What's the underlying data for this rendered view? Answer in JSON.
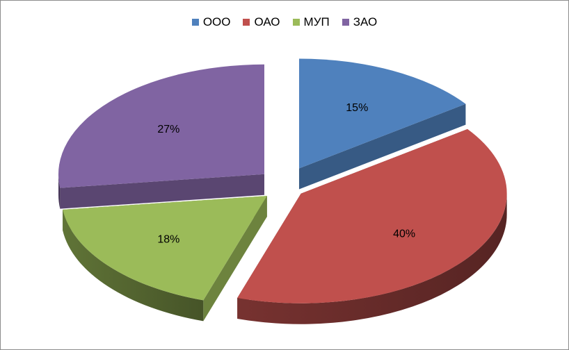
{
  "chart_data": {
    "type": "pie",
    "style": "3d-exploded",
    "title": "",
    "legend_position": "top",
    "categories": [
      "ООО",
      "ОАО",
      "МУП",
      "ЗАО"
    ],
    "values": [
      15,
      40,
      18,
      27
    ],
    "labels": [
      "15%",
      "40%",
      "18%",
      "27%"
    ],
    "colors": [
      "#4f81bd",
      "#c0504d",
      "#9bbb59",
      "#8064a2"
    ]
  }
}
